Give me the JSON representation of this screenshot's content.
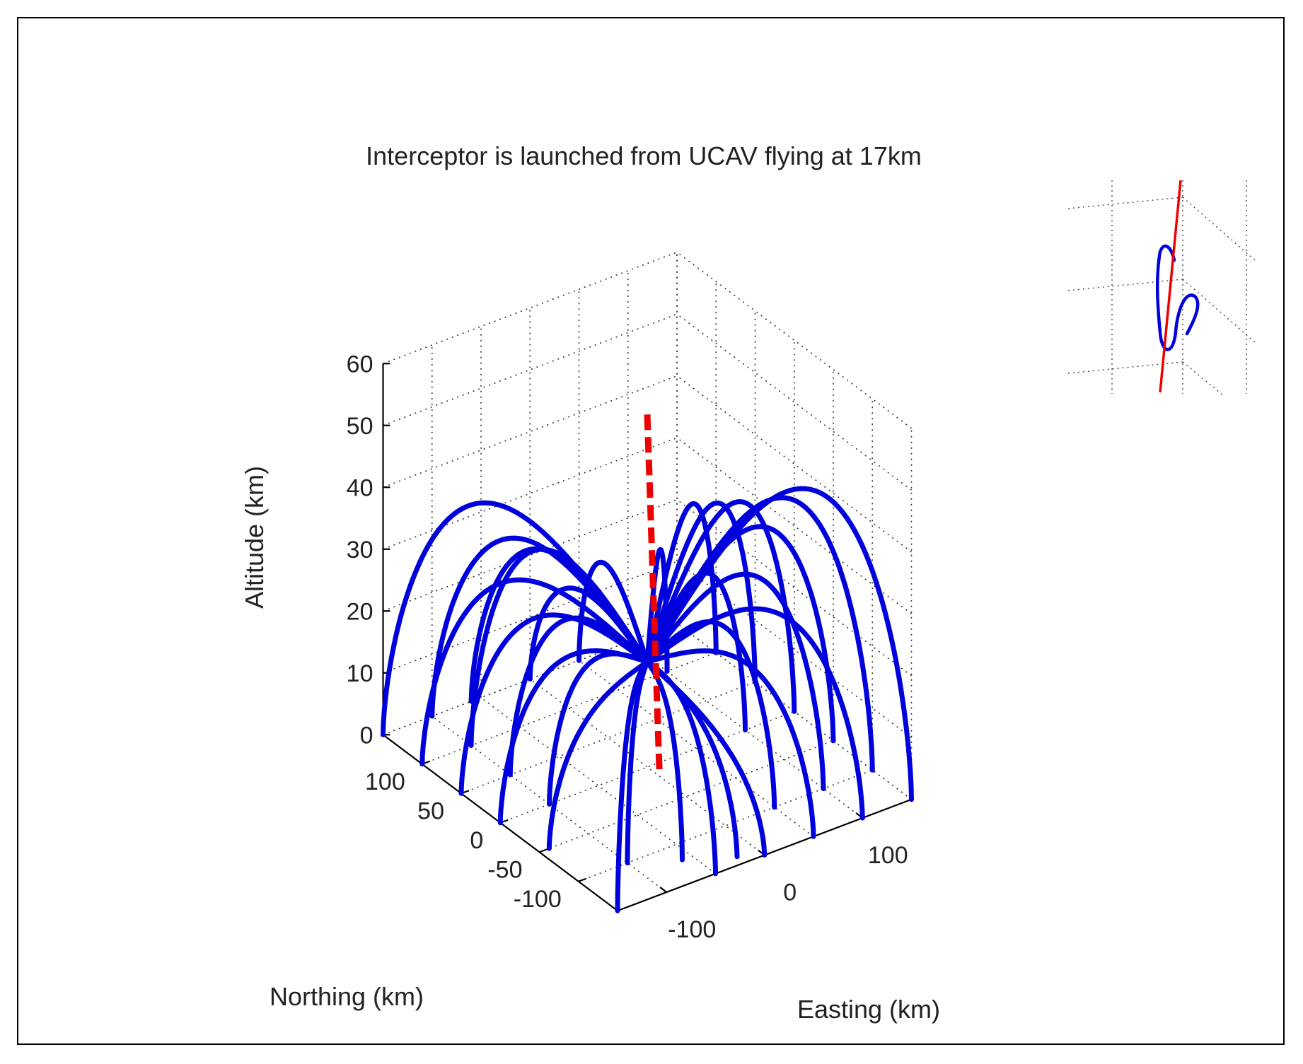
{
  "chart_data": {
    "type": "line",
    "projection": "3d",
    "title": "Interceptor is launched from UCAV flying at 17km",
    "xlabel": "Easting (km)",
    "ylabel": "Northing (km)",
    "zlabel": "Altitude (km)",
    "xlim": [
      -150,
      150
    ],
    "ylim": [
      -150,
      150
    ],
    "zlim": [
      0,
      60
    ],
    "x_ticks": [
      "-100",
      "0",
      "100"
    ],
    "y_ticks": [
      "-100",
      "-50",
      "0",
      "50",
      "100"
    ],
    "z_ticks": [
      "0",
      "10",
      "20",
      "30",
      "40",
      "50",
      "60"
    ],
    "grid": true,
    "colors": {
      "interceptors": "#0000dd",
      "target": "#ee0000"
    },
    "target_trajectory": {
      "name": "",
      "style": "dashed",
      "x": [
        0,
        6
      ],
      "y": [
        0,
        -8
      ],
      "z": [
        57,
        0
      ]
    },
    "interceptor_trajectories": {
      "launch_altitude": 17,
      "series": [
        {
          "end": [
            -150,
            150,
            0
          ],
          "apex": 40
        },
        {
          "end": [
            -100,
            150,
            0
          ],
          "apex": 33
        },
        {
          "end": [
            -60,
            150,
            0
          ],
          "apex": 30
        },
        {
          "end": [
            -150,
            100,
            0
          ],
          "apex": 31
        },
        {
          "end": [
            -100,
            100,
            0
          ],
          "apex": 34
        },
        {
          "end": [
            -150,
            50,
            0
          ],
          "apex": 28
        },
        {
          "end": [
            -100,
            50,
            0
          ],
          "apex": 26
        },
        {
          "end": [
            -150,
            0,
            0
          ],
          "apex": 24
        },
        {
          "end": [
            -100,
            0,
            0
          ],
          "apex": 22
        },
        {
          "end": [
            -140,
            -50,
            0
          ],
          "apex": 18
        },
        {
          "end": [
            -100,
            -100,
            0
          ],
          "apex": 20
        },
        {
          "end": [
            -60,
            -120,
            0
          ],
          "apex": 20
        },
        {
          "end": [
            -20,
            -140,
            0
          ],
          "apex": 18
        },
        {
          "end": [
            0,
            -150,
            0
          ],
          "apex": 16
        },
        {
          "end": [
            150,
            -150,
            0
          ],
          "apex": 48
        },
        {
          "end": [
            150,
            -100,
            0
          ],
          "apex": 44
        },
        {
          "end": [
            150,
            -50,
            0
          ],
          "apex": 37
        },
        {
          "end": [
            150,
            0,
            0
          ],
          "apex": 38
        },
        {
          "end": [
            150,
            50,
            0
          ],
          "apex": 35
        },
        {
          "end": [
            150,
            100,
            0
          ],
          "apex": 32
        },
        {
          "end": [
            100,
            -150,
            0
          ],
          "apex": 31
        },
        {
          "end": [
            100,
            -100,
            0
          ],
          "apex": 34
        },
        {
          "end": [
            100,
            0,
            0
          ],
          "apex": 29
        },
        {
          "end": [
            100,
            100,
            0
          ],
          "apex": 27
        },
        {
          "end": [
            50,
            -150,
            0
          ],
          "apex": 25
        },
        {
          "end": [
            50,
            -100,
            0
          ],
          "apex": 28
        },
        {
          "end": [
            50,
            150,
            0
          ],
          "apex": 24
        },
        {
          "end": [
            0,
            150,
            0
          ],
          "apex": 22
        },
        {
          "end": [
            -50,
            -150,
            0
          ],
          "apex": 21
        },
        {
          "end": [
            -150,
            -150,
            0
          ],
          "apex": 24
        }
      ]
    },
    "inset": {
      "target_segment": {
        "color": "#ee0000"
      },
      "interceptor_loop": {
        "color": "#0000dd"
      }
    }
  }
}
